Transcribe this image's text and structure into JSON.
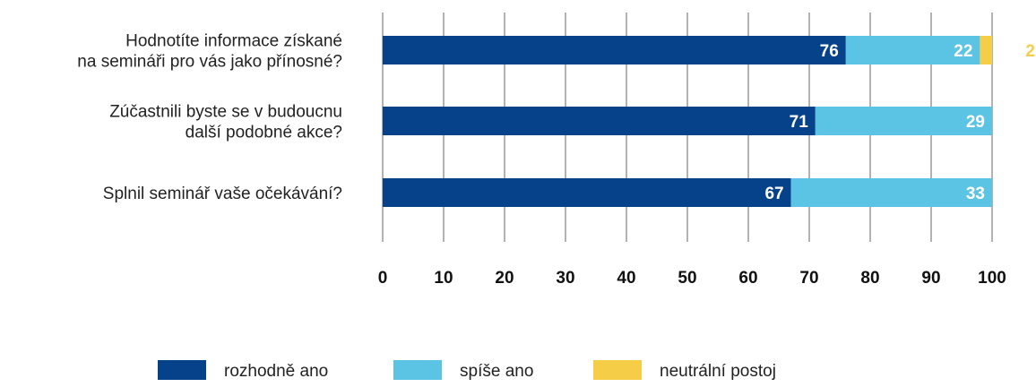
{
  "chart_data": {
    "type": "bar",
    "orientation": "horizontal",
    "stacked": true,
    "categories": [
      [
        "Hodnotíte informace získané",
        "na semináři pro vás jako přínosné?"
      ],
      [
        "Zúčastnili byste se v budoucnu",
        "další podobné akce?"
      ],
      [
        "Splnil seminář vaše očekávání?"
      ]
    ],
    "series": [
      {
        "name": "rozhodně ano",
        "color": "#05428a",
        "label_color": "#ffffff",
        "values": [
          76,
          71,
          67
        ]
      },
      {
        "name": "spíše ano",
        "color": "#5bc4e5",
        "label_color": "#ffffff",
        "values": [
          22,
          29,
          33
        ]
      },
      {
        "name": "neutrální postoj",
        "color": "#f5cd47",
        "label_color": "#f5cd47",
        "values": [
          2,
          0,
          0
        ]
      }
    ],
    "xlim": [
      0,
      100
    ],
    "xticks": [
      0,
      10,
      20,
      30,
      40,
      50,
      60,
      70,
      80,
      90,
      100
    ],
    "grid": true,
    "legend_position": "bottom",
    "title": "",
    "xlabel": "",
    "ylabel": ""
  }
}
